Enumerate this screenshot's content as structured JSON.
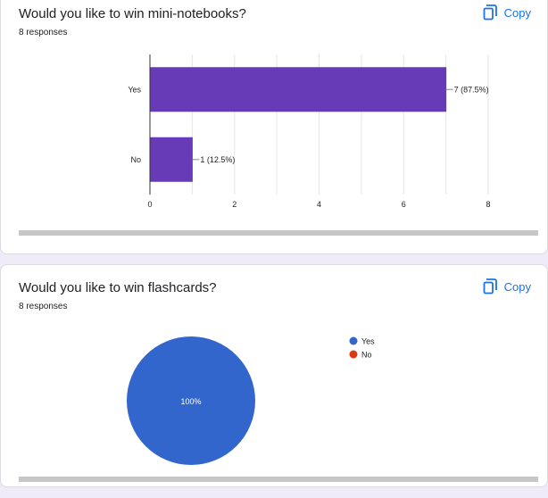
{
  "questions": [
    {
      "title": "Would you like to win mini-notebooks?",
      "responses": "8 responses",
      "copy_label": "Copy"
    },
    {
      "title": "Would you like to win flashcards?",
      "responses": "8 responses",
      "copy_label": "Copy"
    }
  ],
  "chart_data": [
    {
      "type": "bar",
      "orientation": "horizontal",
      "categories": [
        "Yes",
        "No"
      ],
      "values": [
        7,
        1
      ],
      "data_labels": [
        "7 (87.5%)",
        "1 (12.5%)"
      ],
      "xlim": [
        0,
        8
      ],
      "x_ticks": [
        "0",
        "2",
        "4",
        "6",
        "8"
      ],
      "color": "#673ab7",
      "grid": true
    },
    {
      "type": "pie",
      "labels": [
        "Yes",
        "No"
      ],
      "values": [
        8,
        0
      ],
      "slice_label": "100%",
      "colors": [
        "#3366cc",
        "#dc3912"
      ],
      "legend_position": "right"
    }
  ]
}
